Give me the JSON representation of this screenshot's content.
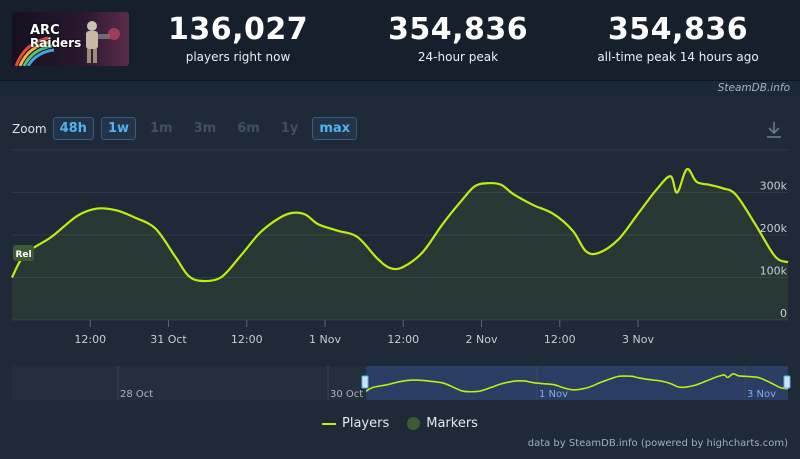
{
  "game": {
    "logo_line1": "ARC",
    "logo_line2": "Raiders"
  },
  "stats": [
    {
      "value": "136,027",
      "label": "players right now"
    },
    {
      "value": "354,836",
      "label": "24-hour peak"
    },
    {
      "value": "354,836",
      "label": "all-time peak 14 hours ago"
    }
  ],
  "credit_top": "SteamDB.info",
  "zoom": {
    "label": "Zoom",
    "options": [
      {
        "label": "48h",
        "active": true
      },
      {
        "label": "1w",
        "active": true
      },
      {
        "label": "1m",
        "active": false
      },
      {
        "label": "3m",
        "active": false
      },
      {
        "label": "6m",
        "active": false
      },
      {
        "label": "1y",
        "active": false
      },
      {
        "label": "max",
        "active": true
      }
    ]
  },
  "marker": {
    "label": "Rel"
  },
  "chart_data": {
    "type": "area",
    "series": [
      {
        "name": "Players",
        "color": "#beee11"
      }
    ],
    "x_tick_labels": [
      "12:00",
      "31 Oct",
      "12:00",
      "1 Nov",
      "12:00",
      "2 Nov",
      "12:00",
      "3 Nov"
    ],
    "y_tick_labels": [
      "0",
      "100k",
      "200k",
      "300k"
    ],
    "ylim": [
      0,
      400000
    ],
    "points": [
      [
        "30 Oct 00:00",
        100000
      ],
      [
        "30 Oct 02:00",
        155000
      ],
      [
        "30 Oct 06:00",
        195000
      ],
      [
        "30 Oct 10:00",
        245000
      ],
      [
        "30 Oct 13:00",
        262000
      ],
      [
        "30 Oct 16:00",
        258000
      ],
      [
        "30 Oct 19:00",
        240000
      ],
      [
        "30 Oct 22:00",
        215000
      ],
      [
        "31 Oct 01:00",
        150000
      ],
      [
        "31 Oct 03:00",
        105000
      ],
      [
        "31 Oct 05:00",
        92000
      ],
      [
        "31 Oct 08:00",
        100000
      ],
      [
        "31 Oct 11:00",
        150000
      ],
      [
        "31 Oct 14:00",
        205000
      ],
      [
        "31 Oct 17:00",
        240000
      ],
      [
        "31 Oct 19:00",
        252000
      ],
      [
        "31 Oct 21:00",
        248000
      ],
      [
        "31 Oct 23:00",
        225000
      ],
      [
        "1 Nov 02:00",
        210000
      ],
      [
        "1 Nov 05:00",
        195000
      ],
      [
        "1 Nov 08:00",
        145000
      ],
      [
        "1 Nov 10:00",
        122000
      ],
      [
        "1 Nov 12:00",
        125000
      ],
      [
        "1 Nov 15:00",
        160000
      ],
      [
        "1 Nov 18:00",
        225000
      ],
      [
        "1 Nov 21:00",
        282000
      ],
      [
        "1 Nov 23:00",
        315000
      ],
      [
        "2 Nov 01:00",
        322000
      ],
      [
        "2 Nov 03:00",
        318000
      ],
      [
        "2 Nov 05:00",
        295000
      ],
      [
        "2 Nov 08:00",
        270000
      ],
      [
        "2 Nov 11:00",
        250000
      ],
      [
        "2 Nov 14:00",
        210000
      ],
      [
        "2 Nov 16:00",
        162000
      ],
      [
        "2 Nov 18:00",
        158000
      ],
      [
        "2 Nov 21:00",
        190000
      ],
      [
        "3 Nov 00:00",
        250000
      ],
      [
        "3 Nov 03:00",
        310000
      ],
      [
        "3 Nov 05:00",
        338000
      ],
      [
        "3 Nov 06:00",
        300000
      ],
      [
        "3 Nov 07:30",
        354836
      ],
      [
        "3 Nov 09:00",
        325000
      ],
      [
        "3 Nov 11:00",
        318000
      ],
      [
        "3 Nov 13:00",
        310000
      ],
      [
        "3 Nov 15:00",
        295000
      ],
      [
        "3 Nov 18:00",
        225000
      ],
      [
        "3 Nov 21:00",
        150000
      ],
      [
        "3 Nov 23:00",
        136027
      ]
    ],
    "navigator": {
      "x_tick_labels": [
        "28 Oct",
        "30 Oct",
        "1 Nov",
        "3 Nov"
      ]
    },
    "legend": [
      {
        "label": "Players",
        "kind": "line",
        "color": "#beee11"
      },
      {
        "label": "Markers",
        "kind": "dot",
        "color": "#3e5a34"
      }
    ]
  },
  "credit_bottom": "data by SteamDB.info (powered by highcharts.com)"
}
